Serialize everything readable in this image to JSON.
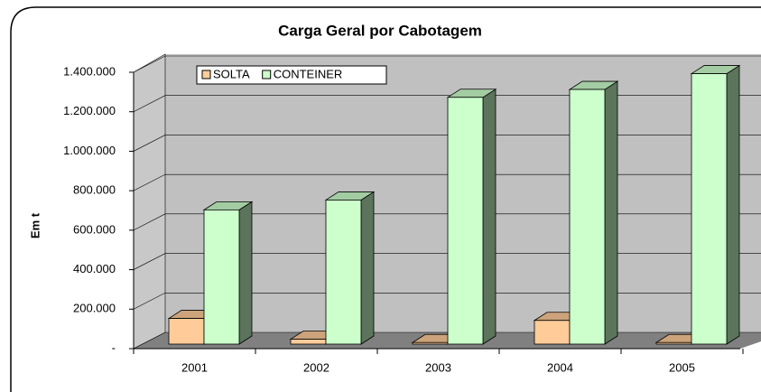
{
  "chart_data": {
    "type": "bar3d",
    "title": "Carga Geral por Cabotagem",
    "y_label": "Em t",
    "categories": [
      "2001",
      "2002",
      "2003",
      "2004",
      "2005"
    ],
    "series": [
      {
        "name": "SOLTA",
        "color": "#ffcc99",
        "values": [
          130000,
          25000,
          8000,
          120000,
          8000
        ]
      },
      {
        "name": "CONTEINER",
        "color": "#ccffcc",
        "values": [
          680000,
          730000,
          1250000,
          1290000,
          1370000
        ]
      }
    ],
    "ylim": [
      0,
      1400000
    ],
    "yticks": [
      {
        "value": 0,
        "label": "-"
      },
      {
        "value": 200000,
        "label": "200.000"
      },
      {
        "value": 400000,
        "label": "400.000"
      },
      {
        "value": 600000,
        "label": "600.000"
      },
      {
        "value": 800000,
        "label": "800.000"
      },
      {
        "value": 1000000,
        "label": "1.000.000"
      },
      {
        "value": 1200000,
        "label": "1.200.000"
      },
      {
        "value": 1400000,
        "label": "1.400.000"
      }
    ],
    "grid": true,
    "legend": "top-left"
  }
}
